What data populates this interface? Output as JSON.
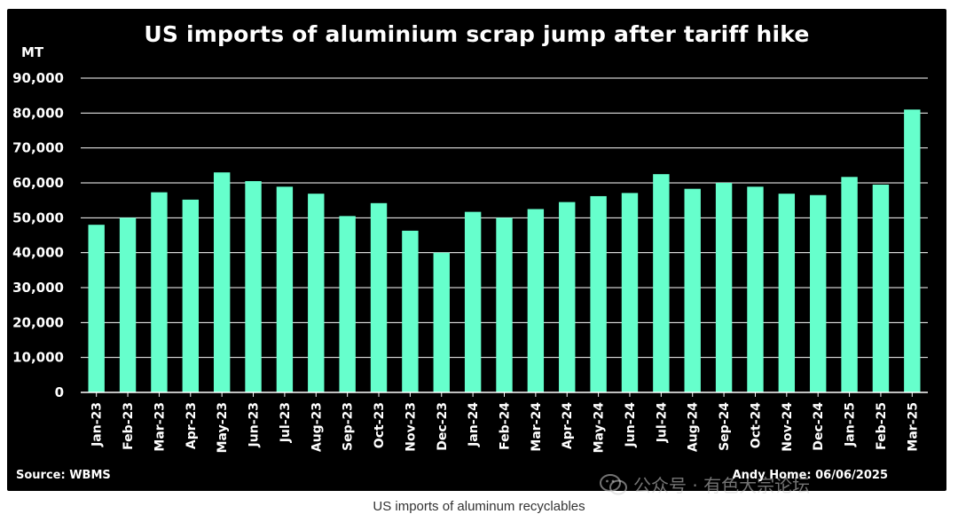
{
  "chart_data": {
    "type": "bar",
    "title": "US imports of aluminium scrap jump after tariff hike",
    "ylabel": "MT",
    "xlabel": "",
    "ylim": [
      0,
      90000
    ],
    "yticks": [
      0,
      10000,
      20000,
      30000,
      40000,
      50000,
      60000,
      70000,
      80000,
      90000
    ],
    "ytick_labels": [
      "0",
      "10,000",
      "20,000",
      "30,000",
      "40,000",
      "50,000",
      "60,000",
      "70,000",
      "80,000",
      "90,000"
    ],
    "grid": true,
    "bar_color": "#66FFCC",
    "background": "#000000",
    "categories": [
      "Jan-23",
      "Feb-23",
      "Mar-23",
      "Apr-23",
      "May-23",
      "Jun-23",
      "Jul-23",
      "Aug-23",
      "Sep-23",
      "Oct-23",
      "Nov-23",
      "Dec-23",
      "Jan-24",
      "Feb-24",
      "Mar-24",
      "Apr-24",
      "May-24",
      "Jun-24",
      "Jul-24",
      "Aug-24",
      "Sep-24",
      "Oct-24",
      "Nov-24",
      "Dec-24",
      "Jan-25",
      "Feb-25",
      "Mar-25"
    ],
    "values": [
      48000,
      50000,
      57300,
      55200,
      63000,
      60500,
      58900,
      56900,
      50500,
      54200,
      46300,
      40000,
      51700,
      50000,
      52500,
      54500,
      56200,
      57100,
      62500,
      58300,
      60000,
      58900,
      56900,
      56500,
      61700,
      59500,
      81000
    ]
  },
  "source_label": "Source: WBMS",
  "credit_label": "Andy Home: 06/06/2025",
  "watermark_text": "公众号 · 有色大宗论坛",
  "caption": "US imports of aluminum recyclables"
}
